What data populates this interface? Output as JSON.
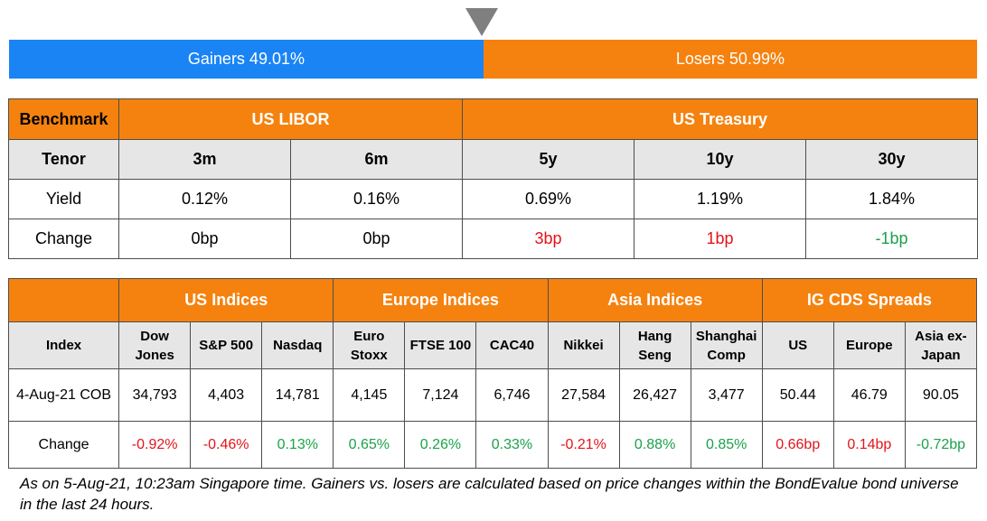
{
  "bar": {
    "gainers_label": "Gainers 49.01%",
    "losers_label": "Losers 50.99%",
    "gainers_pct": 49.01,
    "losers_pct": 50.99,
    "gainers_color": "#1a84f5",
    "losers_color": "#f5820f",
    "marker_color": "#7f7f7f"
  },
  "rates": {
    "benchmark_label": "Benchmark",
    "libor_label": "US LIBOR",
    "treasury_label": "US Treasury",
    "tenor_label": "Tenor",
    "tenors": [
      "3m",
      "6m",
      "5y",
      "10y",
      "30y"
    ],
    "yield_label": "Yield",
    "yields": [
      "0.12%",
      "0.16%",
      "0.69%",
      "1.19%",
      "1.84%"
    ],
    "change_label": "Change",
    "changes": [
      "0bp",
      "0bp",
      "3bp",
      "1bp",
      "-1bp"
    ]
  },
  "indices": {
    "groups": [
      "US Indices",
      "Europe Indices",
      "Asia Indices",
      "IG CDS Spreads"
    ],
    "index_label": "Index",
    "columns": [
      [
        "Dow",
        "Jones"
      ],
      [
        "S&P 500"
      ],
      [
        "Nasdaq"
      ],
      [
        "Euro",
        "Stoxx"
      ],
      [
        "FTSE 100"
      ],
      [
        "CAC40"
      ],
      [
        "Nikkei"
      ],
      [
        "Hang",
        "Seng"
      ],
      [
        "Shanghai",
        "Comp"
      ],
      [
        "US"
      ],
      [
        "Europe"
      ],
      [
        "Asia ex-",
        "Japan"
      ]
    ],
    "cob_label": "4-Aug-21 COB",
    "values": [
      "34,793",
      "4,403",
      "14,781",
      "4,145",
      "7,124",
      "6,746",
      "27,584",
      "26,427",
      "3,477",
      "50.44",
      "46.79",
      "90.05"
    ],
    "change_label": "Change",
    "changes": [
      "-0.92%",
      "-0.46%",
      "0.13%",
      "0.65%",
      "0.26%",
      "0.33%",
      "-0.21%",
      "0.88%",
      "0.85%",
      "0.66bp",
      "0.14bp",
      "-0.72bp"
    ]
  },
  "colors": {
    "header_orange": "#f5820f",
    "subheader_gray": "#e7e6e6",
    "negative_red": "#e3141a",
    "positive_green": "#1aa24a"
  },
  "footnote": "As on 5-Aug-21, 10:23am Singapore time. Gainers vs. losers are calculated based on price changes within the BondEvalue bond universe in the last 24 hours."
}
